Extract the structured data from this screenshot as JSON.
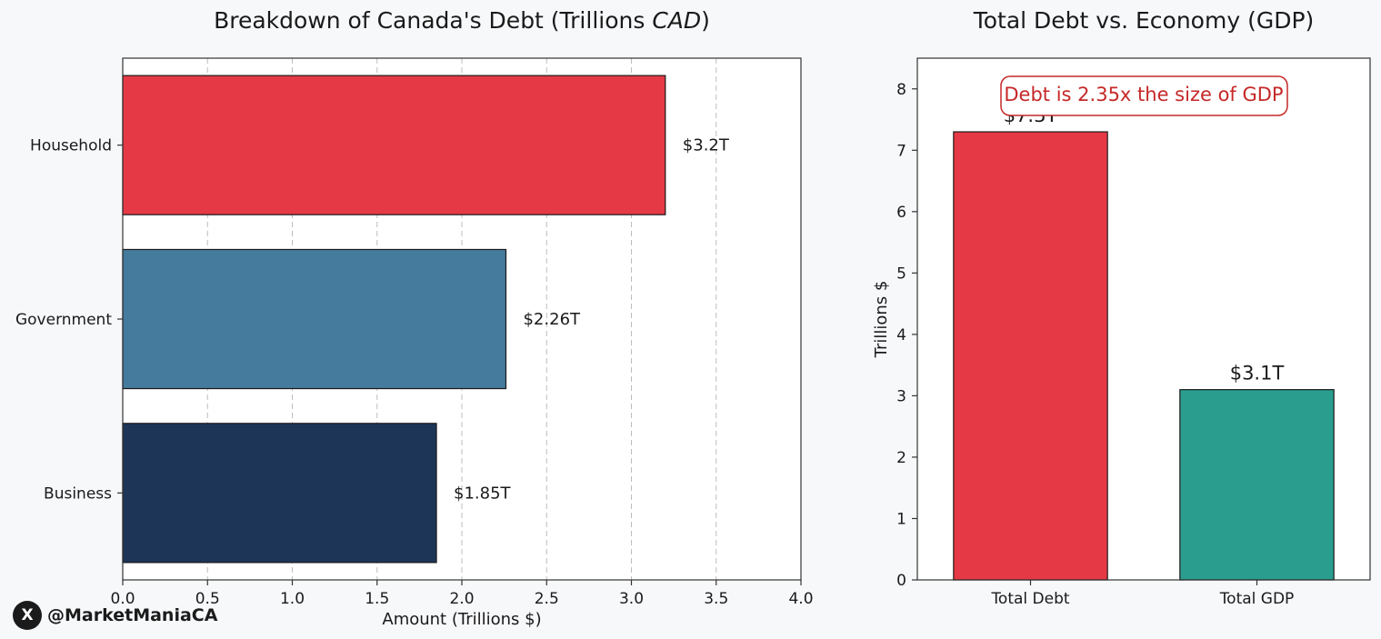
{
  "chart_data": [
    {
      "type": "bar",
      "orientation": "horizontal",
      "title": "Breakdown of Canada's Debt (Trillions CAD)",
      "title_plain": "Breakdown of Canada's Debt (Trillions ",
      "title_italic": "CAD",
      "title_close": ")",
      "categories": [
        "Household",
        "Government",
        "Business"
      ],
      "values": [
        3.2,
        2.26,
        1.85
      ],
      "value_labels": [
        "$3.2T",
        "$2.26T",
        "$1.85T"
      ],
      "colors": [
        "#e63946",
        "#457b9d",
        "#1d3557"
      ],
      "xlabel": "Amount (Trillions $)",
      "ylabel": "",
      "xlim": [
        0,
        4.0
      ],
      "xticks": [
        "0.0",
        "0.5",
        "1.0",
        "1.5",
        "2.0",
        "2.5",
        "3.0",
        "3.5",
        "4.0"
      ],
      "grid": "x-dashed"
    },
    {
      "type": "bar",
      "title": "Total Debt vs. Economy (GDP)",
      "categories": [
        "Total Debt",
        "Total GDP"
      ],
      "values": [
        7.3,
        3.1
      ],
      "value_labels": [
        "$7.3T",
        "$3.1T"
      ],
      "colors": [
        "#e63946",
        "#2a9d8f"
      ],
      "xlabel": "",
      "ylabel": "Trillions $",
      "ylim": [
        0,
        8.5
      ],
      "yticks": [
        "0",
        "1",
        "2",
        "3",
        "4",
        "5",
        "6",
        "7",
        "8"
      ],
      "annotation": "Debt is 2.35x the size of GDP",
      "annotation_color": "#c62828"
    }
  ],
  "watermark": {
    "logo_glyph": "X",
    "handle": "@MarketManiaCA"
  }
}
